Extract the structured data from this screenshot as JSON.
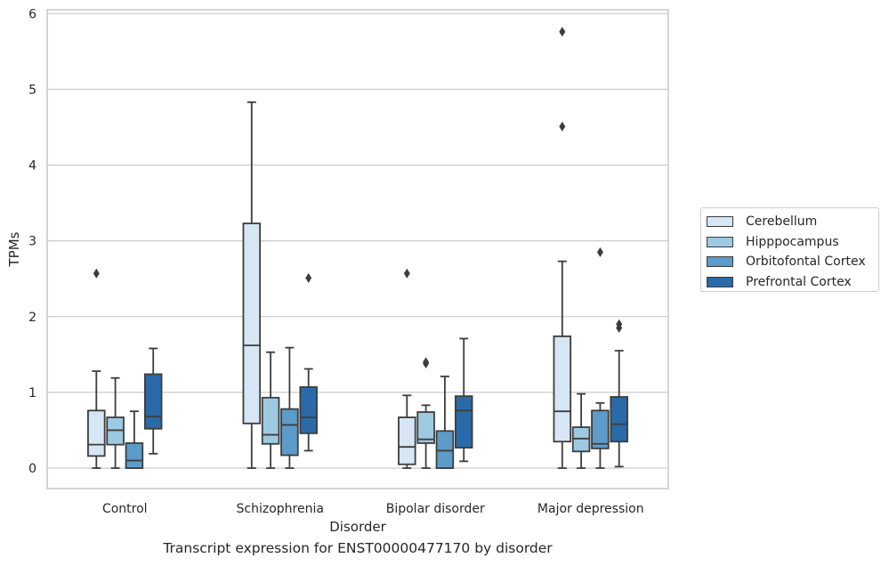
{
  "caption": "Transcript expression for ENST00000477170 by disorder",
  "chart_data": {
    "type": "box",
    "xlabel": "Disorder",
    "ylabel": "TPMs",
    "ylim": [
      -0.27,
      6.05
    ],
    "yticks": [
      0,
      1,
      2,
      3,
      4,
      5,
      6
    ],
    "grid": "horizontal",
    "legend_position": "right",
    "categories": [
      "Control",
      "Schizophrenia",
      "Bipolar disorder",
      "Major depression"
    ],
    "series": [
      {
        "name": "Cerebellum",
        "color": "#d6e6f4",
        "boxes": [
          {
            "whisker_low": 0.0,
            "q1": 0.16,
            "median": 0.31,
            "q3": 0.76,
            "whisker_high": 1.28,
            "outliers": [
              2.57
            ]
          },
          {
            "whisker_low": 0.0,
            "q1": 0.59,
            "median": 1.62,
            "q3": 3.23,
            "whisker_high": 4.83,
            "outliers": []
          },
          {
            "whisker_low": 0.0,
            "q1": 0.05,
            "median": 0.28,
            "q3": 0.67,
            "whisker_high": 0.96,
            "outliers": [
              2.57
            ]
          },
          {
            "whisker_low": 0.0,
            "q1": 0.35,
            "median": 0.75,
            "q3": 1.74,
            "whisker_high": 2.73,
            "outliers": [
              4.51,
              5.76
            ]
          }
        ]
      },
      {
        "name": "Hipppocampus",
        "color": "#9ecae1",
        "boxes": [
          {
            "whisker_low": 0.0,
            "q1": 0.31,
            "median": 0.5,
            "q3": 0.67,
            "whisker_high": 1.19,
            "outliers": []
          },
          {
            "whisker_low": 0.0,
            "q1": 0.32,
            "median": 0.44,
            "q3": 0.93,
            "whisker_high": 1.53,
            "outliers": []
          },
          {
            "whisker_low": 0.0,
            "q1": 0.33,
            "median": 0.38,
            "q3": 0.74,
            "whisker_high": 0.83,
            "outliers": [
              1.38,
              1.4
            ]
          },
          {
            "whisker_low": 0.0,
            "q1": 0.22,
            "median": 0.39,
            "q3": 0.54,
            "whisker_high": 0.98,
            "outliers": []
          }
        ]
      },
      {
        "name": "Orbitofontal Cortex",
        "color": "#5d9bc8",
        "boxes": [
          {
            "whisker_low": 0.0,
            "q1": 0.0,
            "median": 0.1,
            "q3": 0.33,
            "whisker_high": 0.75,
            "outliers": []
          },
          {
            "whisker_low": 0.0,
            "q1": 0.17,
            "median": 0.57,
            "q3": 0.78,
            "whisker_high": 1.59,
            "outliers": []
          },
          {
            "whisker_low": 0.0,
            "q1": 0.0,
            "median": 0.23,
            "q3": 0.49,
            "whisker_high": 1.21,
            "outliers": []
          },
          {
            "whisker_low": 0.0,
            "q1": 0.26,
            "median": 0.32,
            "q3": 0.76,
            "whisker_high": 0.86,
            "outliers": [
              2.85
            ]
          }
        ]
      },
      {
        "name": "Prefrontal Cortex",
        "color": "#2a6aa9",
        "boxes": [
          {
            "whisker_low": 0.19,
            "q1": 0.52,
            "median": 0.68,
            "q3": 1.24,
            "whisker_high": 1.58,
            "outliers": []
          },
          {
            "whisker_low": 0.23,
            "q1": 0.46,
            "median": 0.67,
            "q3": 1.07,
            "whisker_high": 1.31,
            "outliers": [
              2.51
            ]
          },
          {
            "whisker_low": 0.09,
            "q1": 0.27,
            "median": 0.76,
            "q3": 0.95,
            "whisker_high": 1.71,
            "outliers": []
          },
          {
            "whisker_low": 0.02,
            "q1": 0.35,
            "median": 0.58,
            "q3": 0.94,
            "whisker_high": 1.55,
            "outliers": [
              1.85,
              1.9
            ]
          }
        ]
      }
    ]
  }
}
